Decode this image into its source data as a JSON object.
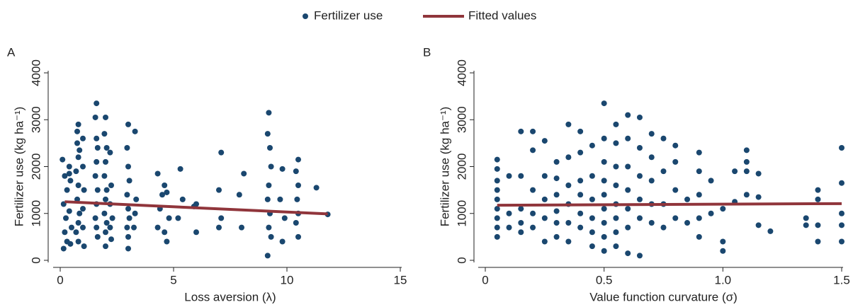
{
  "chart_data": [
    {
      "type": "scatter",
      "label": "A",
      "xlabel": "Loss aversion (λ)",
      "ylabel": "Fertilizer use (kg ha⁻¹)",
      "xlim": [
        0,
        15
      ],
      "ylim": [
        0,
        4000
      ],
      "xticks": [
        0,
        5,
        10,
        15
      ],
      "yticks": [
        0,
        1000,
        2000,
        3000,
        4000
      ],
      "series": [
        {
          "name": "Fertilizer use",
          "type": "scatter",
          "color": "#1a476f",
          "x": [
            0.1,
            0.2,
            0.3,
            0.15,
            0.25,
            0.2,
            0.3,
            0.15,
            0.4,
            0.45,
            0.4,
            0.5,
            0.45,
            0.4,
            0.8,
            0.75,
            0.8,
            0.7,
            0.8,
            0.75,
            0.85,
            0.8,
            0.7,
            0.8,
            0.75,
            0.85,
            1.0,
            1.05,
            1.0,
            1.0,
            1.05,
            1.0,
            1.6,
            1.55,
            1.6,
            1.65,
            1.6,
            1.55,
            1.65,
            1.6,
            1.55,
            1.6,
            1.65,
            2.0,
            1.95,
            2.05,
            2.0,
            1.95,
            2.05,
            2.0,
            1.95,
            2.05,
            2.0,
            2.0,
            2.2,
            2.25,
            2.2,
            2.3,
            2.2,
            2.25,
            3.0,
            2.95,
            3.0,
            3.05,
            2.95,
            3.0,
            3.05,
            2.95,
            3.0,
            3.0,
            3.3,
            3.35,
            3.3,
            3.25,
            4.3,
            4.5,
            4.4,
            4.3,
            4.6,
            4.7,
            4.8,
            4.6,
            4.7,
            5.3,
            5.4,
            5.2,
            6.0,
            5.9,
            6.0,
            7.1,
            7.0,
            7.1,
            7.0,
            8.1,
            7.9,
            8.0,
            9.2,
            9.15,
            9.25,
            9.3,
            9.2,
            9.15,
            9.25,
            9.2,
            9.3,
            9.15,
            9.8,
            9.7,
            9.9,
            9.8,
            10.5,
            10.4,
            10.5,
            10.45,
            10.5,
            10.4,
            10.5,
            11.3,
            11.8
          ],
          "values": [
            2150,
            1800,
            1500,
            1200,
            900,
            600,
            400,
            250,
            2000,
            1700,
            1050,
            700,
            350,
            1850,
            2900,
            2500,
            2200,
            1900,
            1600,
            1300,
            1000,
            800,
            600,
            400,
            2750,
            2350,
            2000,
            1500,
            1100,
            700,
            300,
            2600,
            3350,
            3050,
            2600,
            2400,
            2100,
            1800,
            1500,
            1200,
            900,
            700,
            500,
            3050,
            2700,
            2400,
            2100,
            1800,
            1500,
            1300,
            1000,
            800,
            600,
            300,
            2300,
            1600,
            1200,
            900,
            700,
            450,
            2900,
            2400,
            2000,
            1700,
            1400,
            1100,
            900,
            700,
            500,
            250,
            2750,
            1300,
            1000,
            700,
            1850,
            1400,
            1100,
            700,
            1600,
            1450,
            900,
            600,
            400,
            1950,
            1300,
            900,
            1200,
            1150,
            600,
            2300,
            1500,
            900,
            700,
            1850,
            1400,
            700,
            3150,
            2700,
            2400,
            2000,
            1600,
            1300,
            1000,
            700,
            500,
            100,
            1950,
            1300,
            900,
            400,
            2150,
            1900,
            1600,
            1300,
            1000,
            800,
            500,
            1550,
            980
          ]
        },
        {
          "name": "Fitted values",
          "type": "line",
          "color": "#90353b",
          "x": [
            0.2,
            11.8
          ],
          "values": [
            1250,
            990
          ]
        }
      ]
    },
    {
      "type": "scatter",
      "label": "B",
      "xlabel": "Value function curvature (σ)",
      "ylabel": "Fertilizer use (kg ha⁻¹)",
      "xlim": [
        0,
        1.5
      ],
      "ylim": [
        0,
        4000
      ],
      "xticks": [
        0,
        0.5,
        {
          "value": 1,
          "label": "1.0"
        },
        1.5
      ],
      "yticks": [
        0,
        1000,
        2000,
        3000,
        4000
      ],
      "series": [
        {
          "type": "scatter",
          "color": "#1a476f",
          "x": [
            0.05,
            0.05,
            0.05,
            0.05,
            0.05,
            0.05,
            0.05,
            0.05,
            0.05,
            0.1,
            0.1,
            0.1,
            0.15,
            0.15,
            0.15,
            0.15,
            0.15,
            0.2,
            0.2,
            0.2,
            0.2,
            0.2,
            0.25,
            0.25,
            0.25,
            0.25,
            0.25,
            0.3,
            0.3,
            0.3,
            0.3,
            0.3,
            0.3,
            0.35,
            0.35,
            0.35,
            0.35,
            0.35,
            0.35,
            0.4,
            0.4,
            0.4,
            0.4,
            0.4,
            0.4,
            0.45,
            0.45,
            0.45,
            0.45,
            0.45,
            0.45,
            0.5,
            0.5,
            0.5,
            0.5,
            0.5,
            0.5,
            0.5,
            0.5,
            0.5,
            0.55,
            0.55,
            0.55,
            0.55,
            0.55,
            0.55,
            0.55,
            0.55,
            0.6,
            0.6,
            0.6,
            0.6,
            0.6,
            0.6,
            0.6,
            0.65,
            0.65,
            0.65,
            0.65,
            0.65,
            0.65,
            0.7,
            0.7,
            0.7,
            0.7,
            0.7,
            0.75,
            0.75,
            0.75,
            0.75,
            0.8,
            0.8,
            0.8,
            0.8,
            0.85,
            0.85,
            0.9,
            0.9,
            0.9,
            0.9,
            0.9,
            0.95,
            0.95,
            1.0,
            1.0,
            1.0,
            1.05,
            1.05,
            1.1,
            1.1,
            1.1,
            1.1,
            1.15,
            1.15,
            1.15,
            1.2,
            1.35,
            1.35,
            1.4,
            1.4,
            1.4,
            1.4,
            1.5,
            1.5,
            1.5,
            1.5,
            1.5
          ],
          "values": [
            2150,
            1950,
            1700,
            1500,
            1300,
            1100,
            900,
            700,
            500,
            1800,
            1000,
            700,
            2750,
            1800,
            1100,
            800,
            600,
            2750,
            2350,
            1500,
            1000,
            700,
            2550,
            1800,
            1300,
            900,
            400,
            2100,
            1750,
            1400,
            1050,
            800,
            500,
            2900,
            2200,
            1600,
            1200,
            800,
            400,
            2750,
            2300,
            1700,
            1400,
            1000,
            700,
            2450,
            1800,
            1300,
            900,
            600,
            300,
            3350,
            2600,
            2100,
            1700,
            1400,
            1100,
            800,
            500,
            200,
            2900,
            2500,
            2000,
            1600,
            1200,
            900,
            600,
            300,
            3100,
            2600,
            2000,
            1500,
            1100,
            700,
            150,
            3050,
            2400,
            1800,
            1300,
            900,
            100,
            2700,
            2200,
            1700,
            1200,
            800,
            2600,
            1900,
            1200,
            700,
            2450,
            2100,
            1500,
            900,
            1300,
            800,
            2300,
            1900,
            1400,
            900,
            500,
            1700,
            1000,
            1100,
            400,
            200,
            1900,
            1250,
            2350,
            2100,
            1900,
            1400,
            1850,
            1350,
            750,
            620,
            900,
            750,
            1500,
            1300,
            750,
            400,
            2400,
            1650,
            1000,
            750,
            400
          ]
        },
        {
          "type": "line",
          "color": "#90353b",
          "x": [
            0.05,
            1.5
          ],
          "values": [
            1175,
            1210
          ]
        }
      ]
    }
  ]
}
